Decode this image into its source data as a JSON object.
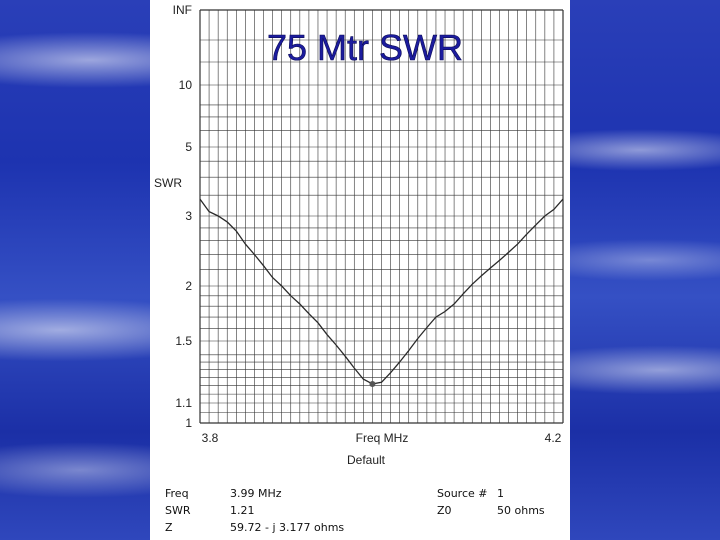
{
  "slide": {
    "title": "75 Mtr SWR"
  },
  "chart_data": {
    "type": "line",
    "title": "75 Mtr SWR",
    "xlabel": "Freq MHz",
    "ylabel": "SWR",
    "xlim": [
      3.8,
      4.2
    ],
    "x_tick_labels": [
      "3.8",
      "4.2"
    ],
    "y_tick_labels": [
      "INF",
      "10",
      "5",
      "3",
      "2",
      "1.5",
      "1.1",
      "1"
    ],
    "scale_label": "Default",
    "grid": true,
    "series": [
      {
        "x": [
          3.8,
          3.81,
          3.82,
          3.83,
          3.84,
          3.85,
          3.86,
          3.87,
          3.88,
          3.89,
          3.9,
          3.91,
          3.92,
          3.93,
          3.94,
          3.95,
          3.96,
          3.97,
          3.98,
          3.99,
          4.0,
          4.01,
          4.02,
          4.03,
          4.04,
          4.05,
          4.06,
          4.07,
          4.08,
          4.09,
          4.1,
          4.11,
          4.12,
          4.13,
          4.14,
          4.15,
          4.16,
          4.17,
          4.18,
          4.19,
          4.2
        ],
        "y": [
          3.4,
          3.1,
          3.0,
          2.9,
          2.75,
          2.55,
          2.4,
          2.25,
          2.1,
          2.0,
          1.9,
          1.82,
          1.73,
          1.65,
          1.55,
          1.47,
          1.39,
          1.31,
          1.24,
          1.21,
          1.22,
          1.28,
          1.35,
          1.43,
          1.52,
          1.61,
          1.7,
          1.75,
          1.82,
          1.92,
          2.02,
          2.12,
          2.22,
          2.32,
          2.43,
          2.55,
          2.7,
          2.85,
          3.0,
          3.15,
          3.4
        ]
      }
    ],
    "marker": {
      "x": 3.99,
      "y": 1.21
    }
  },
  "info": {
    "freq_label": "Freq",
    "freq_value": "3.99 MHz",
    "swr_label": "SWR",
    "swr_value": "1.21",
    "z_label": "Z",
    "z_value": "59.72 - j 3.177 ohms",
    "source_label": "Source #",
    "source_value": "1",
    "z0_label": "Z0",
    "z0_value": "50 ohms"
  },
  "colors": {
    "title": "#1c1c9e",
    "curve": "#2a2a2a",
    "grid": "#333333"
  }
}
